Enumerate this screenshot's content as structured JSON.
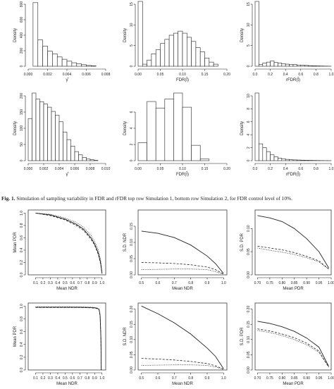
{
  "caption": {
    "label": "Fig. 1.",
    "text": "Simulation of sampling variability in FDR and rFDR top row Simulation 1, bottom row Simulation 2, for FDR control level of 10%."
  },
  "colors": {
    "ink": "#222222",
    "bar_fill": "#ffffff"
  },
  "chart_data": [
    {
      "id": "h-tl",
      "type": "bar",
      "row": 1,
      "col": 1,
      "xlabel": "γ̂",
      "ylabel": "Density",
      "xlim": [
        0,
        0.008
      ],
      "ylim": [
        0,
        800
      ],
      "x_ticks": [
        "0.000",
        "0.002",
        "0.004",
        "0.006",
        "0.008"
      ],
      "y_ticks": [
        "0",
        "200",
        "400",
        "600",
        "800"
      ],
      "bin_edges": [
        0.0005,
        0.001,
        0.0015,
        0.002,
        0.0025,
        0.003,
        0.0035,
        0.004,
        0.0045,
        0.005,
        0.0055,
        0.006,
        0.0065,
        0.007
      ],
      "values": [
        820,
        340,
        260,
        195,
        160,
        120,
        90,
        65,
        45,
        30,
        20,
        10,
        5
      ]
    },
    {
      "id": "h-tm",
      "type": "bar",
      "row": 1,
      "col": 2,
      "xlabel": "FDR(t̂)",
      "ylabel": "Density",
      "xlim": [
        0,
        0.2
      ],
      "ylim": [
        0,
        15
      ],
      "x_ticks": [
        "0.00",
        "0.05",
        "0.10",
        "0.15",
        "0.20"
      ],
      "y_ticks": [
        "0",
        "5",
        "10",
        "15"
      ],
      "bin_edges": [
        0,
        0.01,
        0.02,
        0.03,
        0.04,
        0.05,
        0.06,
        0.07,
        0.08,
        0.09,
        0.1,
        0.11,
        0.12,
        0.13,
        0.14,
        0.15,
        0.16,
        0.17,
        0.18
      ],
      "values": [
        18,
        0.5,
        1.5,
        3,
        4,
        5.5,
        6.5,
        7.5,
        8,
        8.5,
        8,
        7,
        6,
        4.5,
        3.5,
        2,
        1,
        0.5
      ]
    },
    {
      "id": "h-tr",
      "type": "bar",
      "row": 1,
      "col": 3,
      "xlabel": "rFDR(t̂)",
      "ylabel": "Density",
      "xlim": [
        0,
        1
      ],
      "ylim": [
        0,
        15
      ],
      "x_ticks": [
        "0.0",
        "0.2",
        "0.4",
        "0.6",
        "0.8",
        "1.0"
      ],
      "y_ticks": [
        "0",
        "5",
        "10",
        "15"
      ],
      "bin_edges": [
        0,
        0.05,
        0.1,
        0.15,
        0.2,
        0.25,
        0.3,
        0.35,
        0.4,
        0.45,
        0.5,
        0.55,
        0.6,
        0.65,
        0.7,
        0.75,
        0.8,
        0.85,
        0.9,
        0.95,
        1
      ],
      "values": [
        17.5,
        0.4,
        0.8,
        1,
        1.3,
        0.9,
        0.8,
        0.6,
        0.5,
        0.45,
        0.4,
        0.3,
        0.25,
        0.2,
        0.15,
        0.1,
        0.08,
        0.06,
        0.04,
        0.02
      ]
    },
    {
      "id": "h-bl",
      "type": "bar",
      "row": 2,
      "col": 1,
      "xlabel": "γ̂",
      "ylabel": "Density",
      "xlim": [
        0,
        0.01
      ],
      "ylim": [
        0,
        200
      ],
      "x_ticks": [
        "0.000",
        "0.002",
        "0.004",
        "0.006",
        "0.008",
        "0.010"
      ],
      "y_ticks": [
        "0",
        "50",
        "100",
        "150",
        "200"
      ],
      "bin_edges": [
        0,
        0.0005,
        0.001,
        0.0015,
        0.002,
        0.0025,
        0.003,
        0.0035,
        0.004,
        0.0045,
        0.005,
        0.0055,
        0.006,
        0.0065,
        0.007,
        0.0075,
        0.008,
        0.0085,
        0.009
      ],
      "values": [
        130,
        210,
        190,
        182,
        175,
        165,
        152,
        140,
        120,
        88,
        65,
        45,
        28,
        18,
        10,
        5,
        3,
        1
      ]
    },
    {
      "id": "h-bm",
      "type": "bar",
      "row": 2,
      "col": 2,
      "xlabel": "FDR(t̂)",
      "ylabel": "Density",
      "xlim": [
        0,
        0.2
      ],
      "ylim": [
        0,
        8
      ],
      "x_ticks": [
        "0.00",
        "0.05",
        "0.10",
        "0.15",
        "0.20"
      ],
      "y_ticks": [
        "0",
        "2",
        "4",
        "6"
      ],
      "bin_edges": [
        0,
        0.02,
        0.04,
        0.06,
        0.08,
        0.1,
        0.12,
        0.14,
        0.16
      ],
      "values": [
        2.2,
        7.3,
        6.5,
        7.6,
        8.6,
        6.6,
        1.9,
        0.2
      ]
    },
    {
      "id": "h-br",
      "type": "bar",
      "row": 2,
      "col": 3,
      "xlabel": "rFDR(t̂)",
      "ylabel": "Density",
      "xlim": [
        0,
        1
      ],
      "ylim": [
        0,
        10
      ],
      "x_ticks": [
        "0.0",
        "0.2",
        "0.4",
        "0.6",
        "0.8",
        "1.0"
      ],
      "y_ticks": [
        "0",
        "2",
        "4",
        "6",
        "8",
        "10"
      ],
      "bin_edges": [
        0,
        0.05,
        0.1,
        0.15,
        0.2,
        0.25,
        0.3,
        0.35,
        0.4,
        0.45,
        0.5,
        0.55,
        0.6,
        0.65,
        0.7,
        0.75,
        0.8,
        0.85,
        0.9,
        0.95,
        1
      ],
      "values": [
        11,
        2.6,
        2,
        1.4,
        0.9,
        0.6,
        0.4,
        0.3,
        0.2,
        0.15,
        0.12,
        0.1,
        0.08,
        0.06,
        0.05,
        0.04,
        0.03,
        0.02,
        0.01,
        0.01
      ]
    },
    {
      "id": "c-tl",
      "type": "line",
      "row": 3,
      "col": 1,
      "xlabel": "Mean NDR",
      "ylabel": "Mean PDR",
      "xlim": [
        0,
        1.05
      ],
      "ylim": [
        0,
        1.05
      ],
      "x_ticks": [
        "0.1",
        "0.2",
        "0.3",
        "0.4",
        "0.5",
        "0.6",
        "0.7",
        "0.8",
        "0.9",
        "1.0"
      ],
      "y_ticks": [
        "0.0",
        "0.2",
        "0.4",
        "0.6",
        "0.8",
        "1.0"
      ],
      "series": [
        {
          "style": "solid",
          "x": [
            0.1,
            0.3,
            0.5,
            0.65,
            0.75,
            0.85,
            0.9,
            0.95,
            0.98,
            1.0
          ],
          "y": [
            1.0,
            0.97,
            0.9,
            0.82,
            0.74,
            0.6,
            0.5,
            0.35,
            0.2,
            0.02
          ]
        },
        {
          "style": "dashed",
          "x": [
            0.1,
            0.3,
            0.5,
            0.65,
            0.75,
            0.85,
            0.9,
            0.95,
            0.98,
            1.0
          ],
          "y": [
            1.0,
            0.96,
            0.89,
            0.8,
            0.72,
            0.58,
            0.48,
            0.33,
            0.18,
            0.02
          ]
        },
        {
          "style": "dotted",
          "x": [
            0.1,
            0.3,
            0.5,
            0.65,
            0.75,
            0.85,
            0.9,
            0.95,
            0.98,
            1.0
          ],
          "y": [
            1.0,
            0.98,
            0.92,
            0.85,
            0.77,
            0.64,
            0.54,
            0.4,
            0.25,
            0.04
          ]
        }
      ]
    },
    {
      "id": "c-tm",
      "type": "line",
      "row": 3,
      "col": 2,
      "xlabel": "Mean NDR",
      "ylabel": "S.D. NDR",
      "xlim": [
        0.48,
        1.02
      ],
      "ylim": [
        0,
        0.2
      ],
      "x_ticks": [
        "0.5",
        "0.6",
        "0.7",
        "0.8",
        "0.9",
        "1.0"
      ],
      "y_ticks": [
        "0.00",
        "0.05",
        "0.10",
        "0.15"
      ],
      "series": [
        {
          "style": "solid",
          "x": [
            0.5,
            0.6,
            0.7,
            0.8,
            0.9,
            0.95,
            1.0
          ],
          "y": [
            0.135,
            0.128,
            0.115,
            0.092,
            0.058,
            0.035,
            0.004
          ]
        },
        {
          "style": "dashed",
          "x": [
            0.5,
            0.6,
            0.7,
            0.8,
            0.9,
            0.95,
            1.0
          ],
          "y": [
            0.038,
            0.037,
            0.035,
            0.031,
            0.024,
            0.016,
            0.002
          ]
        },
        {
          "style": "dotted",
          "x": [
            0.5,
            0.6,
            0.7,
            0.8,
            0.9,
            0.95,
            1.0
          ],
          "y": [
            0.016,
            0.017,
            0.018,
            0.018,
            0.016,
            0.01,
            0.002
          ]
        }
      ]
    },
    {
      "id": "c-tr",
      "type": "line",
      "row": 3,
      "col": 3,
      "xlabel": "Mean PDR",
      "ylabel": "S.D. PDR",
      "xlim": [
        0.69,
        1.0
      ],
      "ylim": [
        0,
        0.14
      ],
      "x_ticks": [
        "0.70",
        "0.75",
        "0.80",
        "0.85",
        "0.90",
        "0.95",
        "1.00"
      ],
      "y_ticks": [
        "0.00",
        "0.05",
        "0.10"
      ],
      "series": [
        {
          "style": "solid",
          "x": [
            0.7,
            0.75,
            0.8,
            0.85,
            0.9,
            0.95,
            0.99
          ],
          "y": [
            0.128,
            0.123,
            0.115,
            0.1,
            0.078,
            0.05,
            0.015
          ]
        },
        {
          "style": "dashed",
          "x": [
            0.7,
            0.75,
            0.8,
            0.85,
            0.9,
            0.95,
            0.99
          ],
          "y": [
            0.062,
            0.058,
            0.054,
            0.048,
            0.04,
            0.03,
            0.013
          ]
        },
        {
          "style": "dotted",
          "x": [
            0.7,
            0.75,
            0.8,
            0.85,
            0.9,
            0.95,
            0.99
          ],
          "y": [
            0.058,
            0.053,
            0.049,
            0.044,
            0.037,
            0.028,
            0.012
          ]
        }
      ]
    },
    {
      "id": "c-bl",
      "type": "line",
      "row": 4,
      "col": 1,
      "xlabel": "Mean NDR",
      "ylabel": "Mean PDR",
      "xlim": [
        0,
        1.05
      ],
      "ylim": [
        0,
        1.05
      ],
      "x_ticks": [
        "0.1",
        "0.2",
        "0.3",
        "0.4",
        "0.5",
        "0.6",
        "0.7",
        "0.8",
        "0.9",
        "1.0"
      ],
      "y_ticks": [
        "0.0",
        "0.2",
        "0.4",
        "0.6",
        "0.8",
        "1.0"
      ],
      "series": [
        {
          "style": "solid",
          "x": [
            0.1,
            0.4,
            0.7,
            0.85,
            0.93,
            0.96,
            0.975,
            0.985,
            0.99
          ],
          "y": [
            0.985,
            0.985,
            0.984,
            0.98,
            0.97,
            0.95,
            0.85,
            0.5,
            0.0
          ]
        },
        {
          "style": "dashed",
          "x": [
            0.1,
            0.4,
            0.7,
            0.85,
            0.93,
            0.96,
            0.975,
            0.985,
            0.99
          ],
          "y": [
            0.98,
            0.98,
            0.979,
            0.975,
            0.965,
            0.945,
            0.84,
            0.5,
            0.0
          ]
        },
        {
          "style": "dotted",
          "x": [
            0.1,
            0.4,
            0.7,
            0.85,
            0.93,
            0.96,
            0.975,
            0.985,
            0.99
          ],
          "y": [
            0.99,
            0.99,
            0.989,
            0.985,
            0.975,
            0.955,
            0.86,
            0.52,
            0.0
          ]
        }
      ]
    },
    {
      "id": "c-bm",
      "type": "line",
      "row": 4,
      "col": 2,
      "xlabel": "Mean NDR",
      "ylabel": "S.D. NDR",
      "xlim": [
        0.48,
        1.02
      ],
      "ylim": [
        0,
        0.22
      ],
      "x_ticks": [
        "0.5",
        "0.6",
        "0.7",
        "0.8",
        "0.9",
        "1.0"
      ],
      "y_ticks": [
        "0.00",
        "0.05",
        "0.10",
        "0.15",
        "0.20"
      ],
      "series": [
        {
          "style": "solid",
          "x": [
            0.5,
            0.6,
            0.7,
            0.8,
            0.9,
            0.95,
            1.0
          ],
          "y": [
            0.21,
            0.185,
            0.155,
            0.118,
            0.072,
            0.045,
            0.004
          ]
        },
        {
          "style": "dashed",
          "x": [
            0.5,
            0.6,
            0.7,
            0.8,
            0.9,
            0.95,
            1.0
          ],
          "y": [
            0.038,
            0.036,
            0.033,
            0.028,
            0.021,
            0.014,
            0.002
          ]
        },
        {
          "style": "dotted",
          "x": [
            0.5,
            0.6,
            0.7,
            0.8,
            0.9,
            0.95,
            1.0
          ],
          "y": [
            0.015,
            0.016,
            0.017,
            0.017,
            0.015,
            0.01,
            0.002
          ]
        }
      ]
    },
    {
      "id": "c-br",
      "type": "line",
      "row": 4,
      "col": 3,
      "xlabel": "Mean PDR",
      "ylabel": "S.D. PDR",
      "xlim": [
        0.69,
        1.0
      ],
      "ylim": [
        0,
        0.22
      ],
      "x_ticks": [
        "0.70",
        "0.75",
        "0.80",
        "0.85",
        "0.90",
        "0.95",
        "1.00"
      ],
      "y_ticks": [
        "0.00",
        "0.05",
        "0.10",
        "0.15",
        "0.20"
      ],
      "series": [
        {
          "style": "solid",
          "x": [
            0.7,
            0.75,
            0.8,
            0.85,
            0.9,
            0.95,
            0.99
          ],
          "y": [
            0.16,
            0.153,
            0.142,
            0.127,
            0.105,
            0.075,
            0.012
          ]
        },
        {
          "style": "dashed",
          "x": [
            0.7,
            0.75,
            0.8,
            0.85,
            0.9,
            0.95,
            0.99
          ],
          "y": [
            0.135,
            0.128,
            0.118,
            0.106,
            0.088,
            0.062,
            0.01
          ]
        },
        {
          "style": "dotted",
          "x": [
            0.7,
            0.75,
            0.8,
            0.85,
            0.9,
            0.95,
            0.99
          ],
          "y": [
            0.13,
            0.123,
            0.113,
            0.1,
            0.083,
            0.058,
            0.009
          ]
        }
      ]
    }
  ]
}
